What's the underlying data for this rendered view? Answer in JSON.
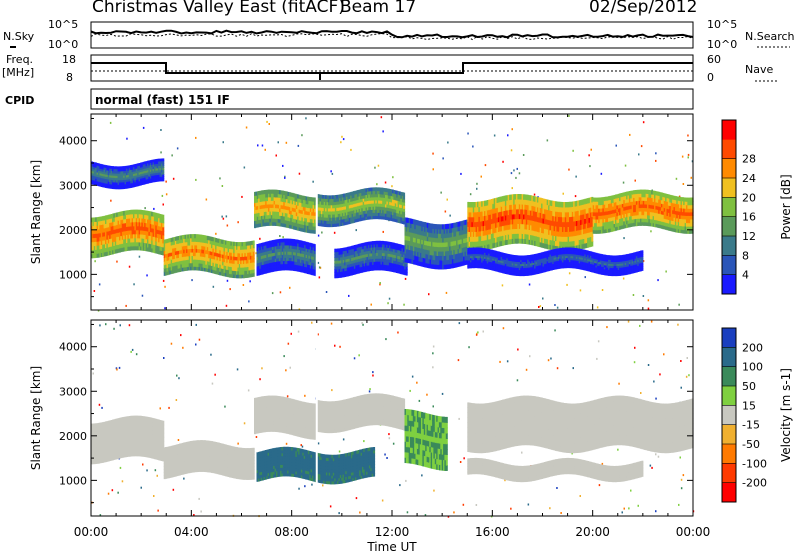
{
  "header": {
    "title": "Christmas Valley East (fitACF)",
    "beam": "Beam 17",
    "date": "02/Sep/2012"
  },
  "panels": {
    "nsky_label": "N.Sky",
    "nsearch_label": "N.Search",
    "freq_label": "Freq.",
    "freq_unit": "[MHz]",
    "nave_label": "Nave",
    "cpid_label": "CPID",
    "cpid_text": "normal (fast) 151 IF",
    "noise_ticks": [
      "10^5",
      "10^0"
    ],
    "freq_ticks": [
      "18",
      "8"
    ],
    "nave_ticks": [
      "60",
      "0"
    ]
  },
  "chart_data": [
    {
      "type": "heatmap",
      "name": "power",
      "ylabel": "Slant Range [km]",
      "xlabel": "",
      "yticks": [
        1000,
        2000,
        3000,
        4000
      ],
      "ylim": [
        200,
        4600
      ],
      "colorbar": {
        "label": "Power [dB]",
        "ticks": [
          4,
          8,
          12,
          16,
          20,
          24,
          28
        ],
        "colors": [
          "#1a1aff",
          "#2a55b8",
          "#3a7a8a",
          "#5a9a5a",
          "#7fc040",
          "#f0c020",
          "#ff8a00",
          "#ff4a00",
          "#ff0000"
        ]
      },
      "bands": [
        {
          "t0": 0.0,
          "t1": 2.9,
          "r0": 1450,
          "r1": 2350,
          "level": 26
        },
        {
          "t0": 0.0,
          "t1": 2.9,
          "r0": 3000,
          "r1": 3500,
          "level": 10
        },
        {
          "t0": 2.9,
          "t1": 6.5,
          "r0": 1000,
          "r1": 1800,
          "level": 24
        },
        {
          "t0": 6.5,
          "t1": 9.0,
          "r0": 2000,
          "r1": 2800,
          "level": 22
        },
        {
          "t0": 6.6,
          "t1": 9.0,
          "r0": 1000,
          "r1": 1700,
          "level": 10
        },
        {
          "t0": 9.0,
          "t1": 12.5,
          "r0": 2150,
          "r1": 2850,
          "level": 18
        },
        {
          "t0": 9.7,
          "t1": 12.6,
          "r0": 1000,
          "r1": 1650,
          "level": 10
        },
        {
          "t0": 12.5,
          "t1": 15.0,
          "r0": 1200,
          "r1": 2200,
          "level": 14
        },
        {
          "t0": 15.0,
          "t1": 20.0,
          "r0": 1600,
          "r1": 2700,
          "level": 27
        },
        {
          "t0": 20.0,
          "t1": 24.0,
          "r0": 2000,
          "r1": 2800,
          "level": 26
        },
        {
          "t0": 15.0,
          "t1": 22.0,
          "r0": 1050,
          "r1": 1500,
          "level": 6
        }
      ]
    },
    {
      "type": "heatmap",
      "name": "velocity",
      "ylabel": "Slant Range [km]",
      "xlabel": "Time UT",
      "yticks": [
        1000,
        2000,
        3000,
        4000
      ],
      "ylim": [
        200,
        4600
      ],
      "xticks": [
        "00:00",
        "04:00",
        "08:00",
        "12:00",
        "16:00",
        "20:00",
        "00:00"
      ],
      "xlim": [
        0,
        24
      ],
      "colorbar": {
        "label": "Velocity [m s-1]",
        "ticks": [
          200,
          100,
          50,
          15,
          -15,
          -50,
          -100,
          -200
        ],
        "colors": [
          "#1a3fbf",
          "#2a6a8a",
          "#3a8a5a",
          "#7fd040",
          "#c8c8c0",
          "#f0b030",
          "#ff7a00",
          "#ff3a00",
          "#ff0000"
        ]
      },
      "bands": [
        {
          "t0": 0.0,
          "t1": 2.9,
          "r0": 1450,
          "r1": 2350,
          "vel": 0
        },
        {
          "t0": 2.9,
          "t1": 6.5,
          "r0": 1100,
          "r1": 1800,
          "vel": 0
        },
        {
          "t0": 6.5,
          "t1": 9.0,
          "r0": 2000,
          "r1": 2800,
          "vel": 0
        },
        {
          "t0": 6.6,
          "t1": 11.3,
          "r0": 1000,
          "r1": 1650,
          "vel": 80
        },
        {
          "t0": 9.0,
          "t1": 12.5,
          "r0": 2150,
          "r1": 2850,
          "vel": 0
        },
        {
          "t0": 12.5,
          "t1": 14.2,
          "r0": 1300,
          "r1": 2500,
          "vel": 30
        },
        {
          "t0": 15.0,
          "t1": 24.0,
          "r0": 1700,
          "r1": 2800,
          "vel": 0
        },
        {
          "t0": 15.0,
          "t1": 22.0,
          "r0": 1050,
          "r1": 1400,
          "vel": 0
        }
      ]
    }
  ]
}
